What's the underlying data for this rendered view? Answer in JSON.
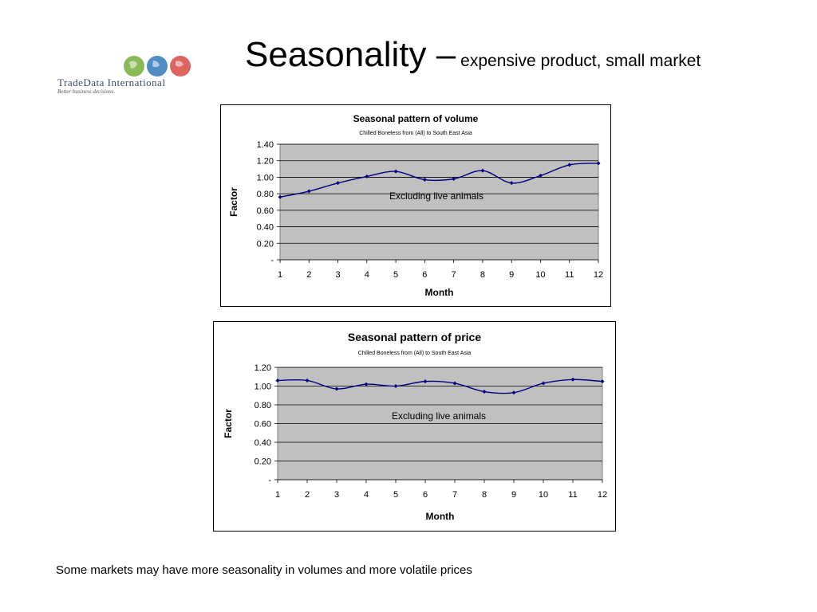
{
  "page": {
    "title_main": "Seasonality –",
    "title_sub": "expensive product, small market",
    "footnote": "Some markets may have more seasonality in volumes and more volatile prices"
  },
  "logo": {
    "name": "TradeData International",
    "tagline": "Better business decisions.",
    "globe_colors": [
      "#7cb342",
      "#3f7fbf",
      "#d9534f"
    ]
  },
  "colors": {
    "plot_area": "#c0c0c0",
    "series_line": "#000080",
    "gridline": "#000000"
  },
  "chart_data": [
    {
      "type": "line",
      "title": "Seasonal pattern of volume",
      "subtitle": "Chilled Boneless from (All) to South East Asia",
      "annotation": "Excluding live animals",
      "xlabel": "Month",
      "ylabel": "Factor",
      "x": [
        1,
        2,
        3,
        4,
        5,
        6,
        7,
        8,
        9,
        10,
        11,
        12
      ],
      "series": [
        {
          "values": [
            0.76,
            0.83,
            0.93,
            1.01,
            1.07,
            0.97,
            0.98,
            1.08,
            0.93,
            1.02,
            1.15,
            1.17
          ]
        }
      ],
      "ylim": [
        0,
        1.4
      ],
      "yticks": [
        0,
        0.2,
        0.4,
        0.6,
        0.8,
        1.0,
        1.2,
        1.4
      ],
      "ytick_labels": [
        "-",
        "0.20",
        "0.40",
        "0.60",
        "0.80",
        "1.00",
        "1.20",
        "1.40"
      ],
      "grid": true,
      "legend": "none"
    },
    {
      "type": "line",
      "title": "Seasonal pattern of price",
      "subtitle": "Chilled Boneless from (All) to South East Asia",
      "annotation": "Excluding live animals",
      "xlabel": "Month",
      "ylabel": "Factor",
      "x": [
        1,
        2,
        3,
        4,
        5,
        6,
        7,
        8,
        9,
        10,
        11,
        12
      ],
      "series": [
        {
          "values": [
            1.06,
            1.06,
            0.97,
            1.02,
            1.0,
            1.05,
            1.03,
            0.94,
            0.93,
            1.03,
            1.07,
            1.05
          ]
        }
      ],
      "ylim": [
        0,
        1.2
      ],
      "yticks": [
        0,
        0.2,
        0.4,
        0.6,
        0.8,
        1.0,
        1.2
      ],
      "ytick_labels": [
        "-",
        "0.20",
        "0.40",
        "0.60",
        "0.80",
        "1.00",
        "1.20"
      ],
      "grid": true,
      "legend": "none"
    }
  ]
}
